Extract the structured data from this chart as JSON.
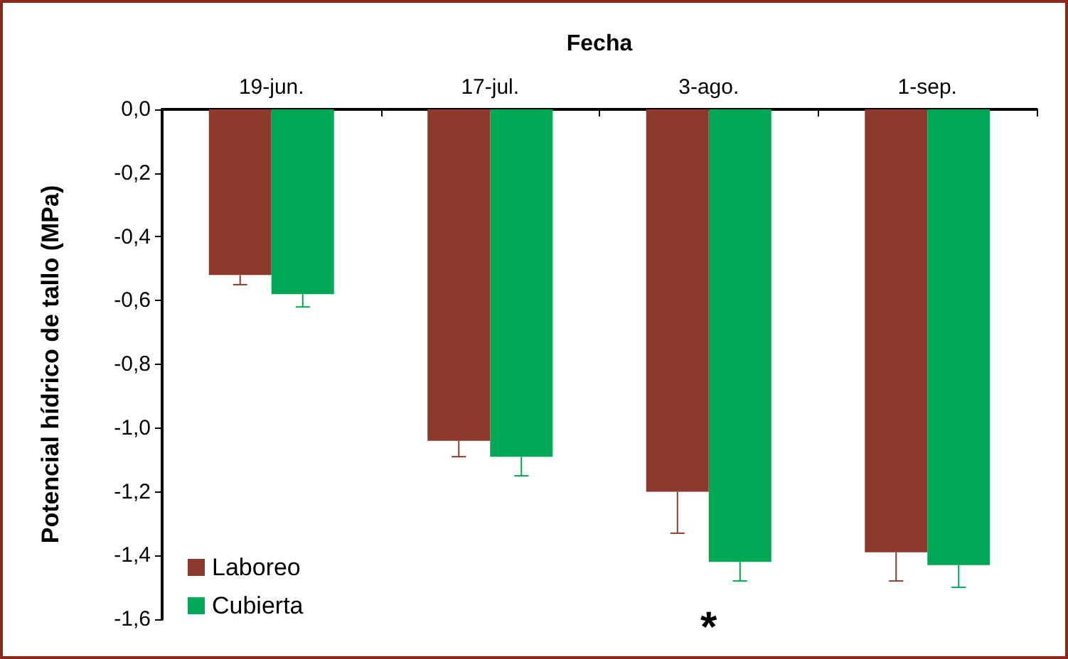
{
  "chart_data": {
    "type": "bar",
    "xlabel": "Fecha",
    "ylabel": "Potencial hídrico de tallo (MPa)",
    "categories": [
      "19-jun.",
      "17-jul.",
      "3-ago.",
      "1-sep."
    ],
    "series": [
      {
        "name": "Laboreo",
        "color": "#8b3a2c",
        "values": [
          -0.52,
          -1.04,
          -1.2,
          -1.39
        ],
        "errors": [
          0.03,
          0.05,
          0.13,
          0.09
        ]
      },
      {
        "name": "Cubierta",
        "color": "#00a856",
        "values": [
          -0.58,
          -1.09,
          -1.42,
          -1.43
        ],
        "errors": [
          0.04,
          0.06,
          0.06,
          0.07
        ]
      }
    ],
    "ylim": [
      -1.6,
      0
    ],
    "yticks": [
      {
        "value": 0,
        "label": "0,0"
      },
      {
        "value": -0.2,
        "label": "-0,2"
      },
      {
        "value": -0.4,
        "label": "-0,4"
      },
      {
        "value": -0.6,
        "label": "-0,6"
      },
      {
        "value": -0.8,
        "label": "-0,8"
      },
      {
        "value": -1.0,
        "label": "-1,0"
      },
      {
        "value": -1.2,
        "label": "-1,2"
      },
      {
        "value": -1.4,
        "label": "-1,4"
      },
      {
        "value": -1.6,
        "label": "-1,6"
      }
    ],
    "annotations": [
      "*"
    ],
    "grid": false,
    "legend": "bottom left"
  }
}
